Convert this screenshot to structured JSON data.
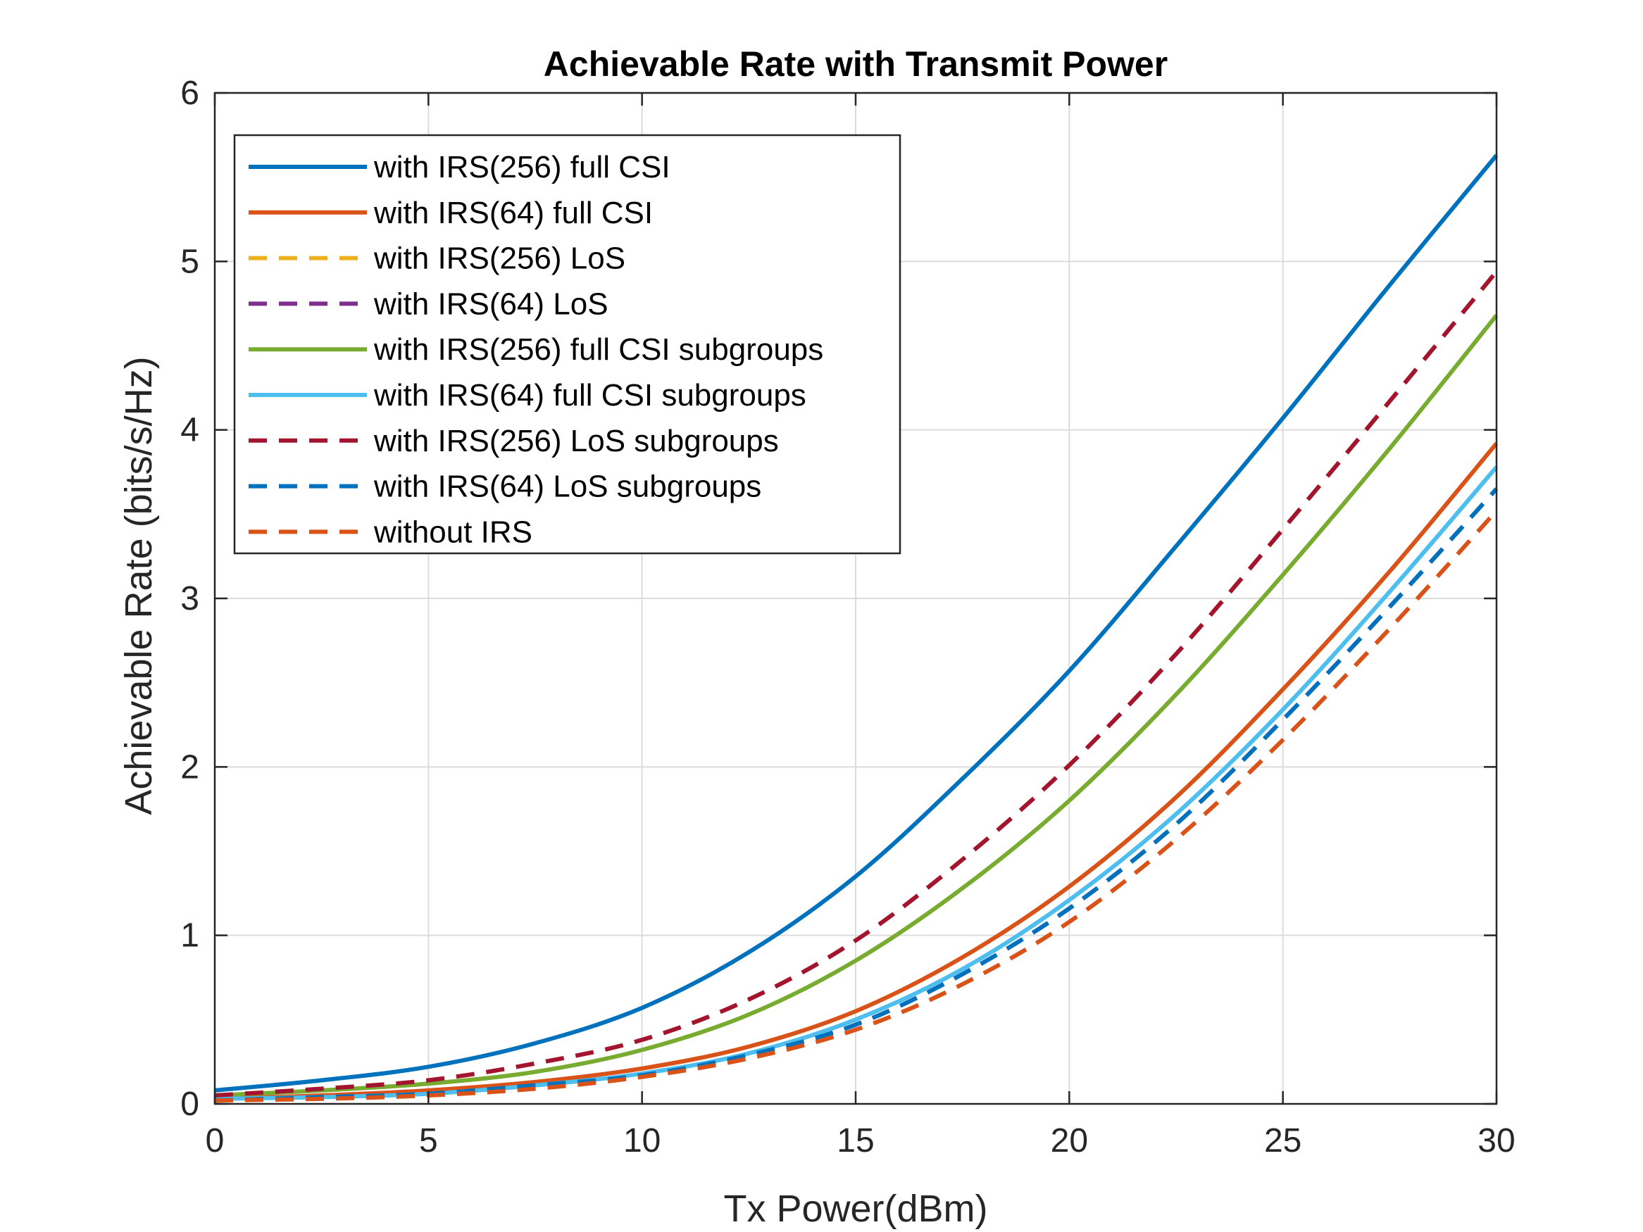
{
  "chart_data": {
    "type": "line",
    "title": "Achievable Rate with Transmit Power",
    "xlabel": "Tx Power(dBm)",
    "ylabel": "Achievable Rate (bits/s/Hz)",
    "xlim": [
      0,
      30
    ],
    "ylim": [
      0,
      6
    ],
    "xticks": [
      "0",
      "5",
      "10",
      "15",
      "20",
      "25",
      "30"
    ],
    "yticks": [
      "0",
      "1",
      "2",
      "3",
      "4",
      "5",
      "6"
    ],
    "grid": true,
    "legend_position": "top-left",
    "x": [
      0,
      2.5,
      5,
      7.5,
      10,
      12.5,
      15,
      17.5,
      20,
      22.5,
      25,
      27.5,
      30
    ],
    "series": [
      {
        "name": "with IRS(256) full CSI",
        "color": "#0072BD",
        "style": "solid",
        "values": [
          0.08,
          0.14,
          0.22,
          0.36,
          0.57,
          0.9,
          1.35,
          1.93,
          2.57,
          3.31,
          4.07,
          4.86,
          5.63
        ]
      },
      {
        "name": "with IRS(64) full CSI",
        "color": "#D95319",
        "style": "solid",
        "values": [
          0.03,
          0.05,
          0.08,
          0.13,
          0.21,
          0.34,
          0.55,
          0.87,
          1.29,
          1.82,
          2.46,
          3.16,
          3.92
        ]
      },
      {
        "name": "with IRS(256) LoS",
        "color": "#EDB120",
        "style": "dashed",
        "values": [
          0.05,
          0.09,
          0.14,
          0.24,
          0.38,
          0.62,
          0.97,
          1.45,
          2.01,
          2.67,
          3.41,
          4.17,
          4.94
        ]
      },
      {
        "name": "with IRS(64) LoS",
        "color": "#7E2F8E",
        "style": "dashed",
        "values": [
          0.02,
          0.04,
          0.06,
          0.11,
          0.17,
          0.29,
          0.47,
          0.77,
          1.16,
          1.66,
          2.28,
          2.95,
          3.65
        ]
      },
      {
        "name": "with IRS(256) full CSI subgroups",
        "color": "#77AC30",
        "style": "solid",
        "values": [
          0.05,
          0.08,
          0.12,
          0.19,
          0.32,
          0.53,
          0.85,
          1.28,
          1.8,
          2.43,
          3.14,
          3.89,
          4.68
        ]
      },
      {
        "name": "with IRS(64) full CSI subgroups",
        "color": "#4DBEEE",
        "style": "solid",
        "values": [
          0.03,
          0.04,
          0.06,
          0.11,
          0.18,
          0.3,
          0.5,
          0.8,
          1.21,
          1.72,
          2.34,
          3.04,
          3.78
        ]
      },
      {
        "name": "with IRS(256) LoS subgroups",
        "color": "#A2142F",
        "style": "dashed",
        "values": [
          0.05,
          0.09,
          0.14,
          0.24,
          0.38,
          0.62,
          0.97,
          1.45,
          2.01,
          2.67,
          3.41,
          4.17,
          4.94
        ]
      },
      {
        "name": "with IRS(64) LoS subgroups",
        "color": "#0072BD",
        "style": "dashed",
        "values": [
          0.02,
          0.04,
          0.06,
          0.11,
          0.17,
          0.29,
          0.47,
          0.77,
          1.16,
          1.66,
          2.28,
          2.95,
          3.65
        ]
      },
      {
        "name": "without IRS",
        "color": "#D95319",
        "style": "dashed",
        "values": [
          0.02,
          0.03,
          0.05,
          0.09,
          0.16,
          0.27,
          0.44,
          0.71,
          1.08,
          1.57,
          2.16,
          2.82,
          3.52
        ]
      }
    ]
  }
}
